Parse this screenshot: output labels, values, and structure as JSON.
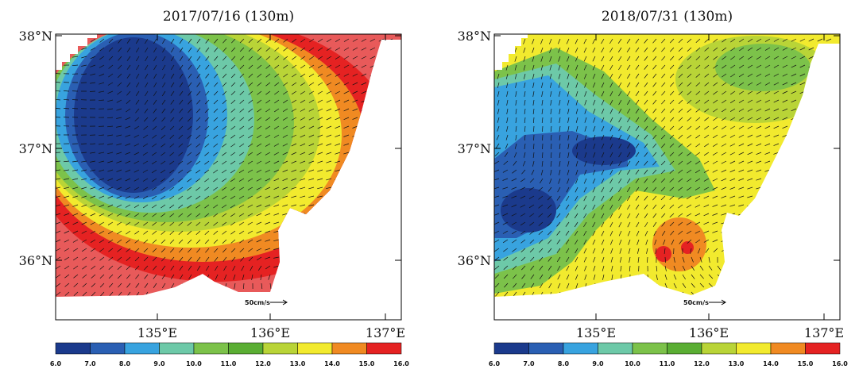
{
  "panels": [
    {
      "title": "2017/07/16  (130m)",
      "lat_labels": [
        "38°N",
        "37°N",
        "36°N"
      ],
      "lon_labels": [
        "135°E",
        "136°E",
        "137°E"
      ],
      "reference_label": "50cm/s"
    },
    {
      "title": "2018/07/31  (130m)",
      "lat_labels": [
        "38°N",
        "37°N",
        "36°N"
      ],
      "lon_labels": [
        "135°E",
        "136°E",
        "137°E"
      ],
      "reference_label": "50cm/s"
    }
  ],
  "colorbar": {
    "labels": [
      "6.0",
      "7.0",
      "8.0",
      "9.0",
      "10.0",
      "11.0",
      "12.0",
      "13.0",
      "14.0",
      "15.0",
      "16.0"
    ],
    "colors": [
      "#1b3a8c",
      "#2a5fb3",
      "#38a3df",
      "#6dc9a8",
      "#7cc24a",
      "#5aae33",
      "#b9d437",
      "#f2ea2e",
      "#f08a22",
      "#e52222"
    ]
  }
}
